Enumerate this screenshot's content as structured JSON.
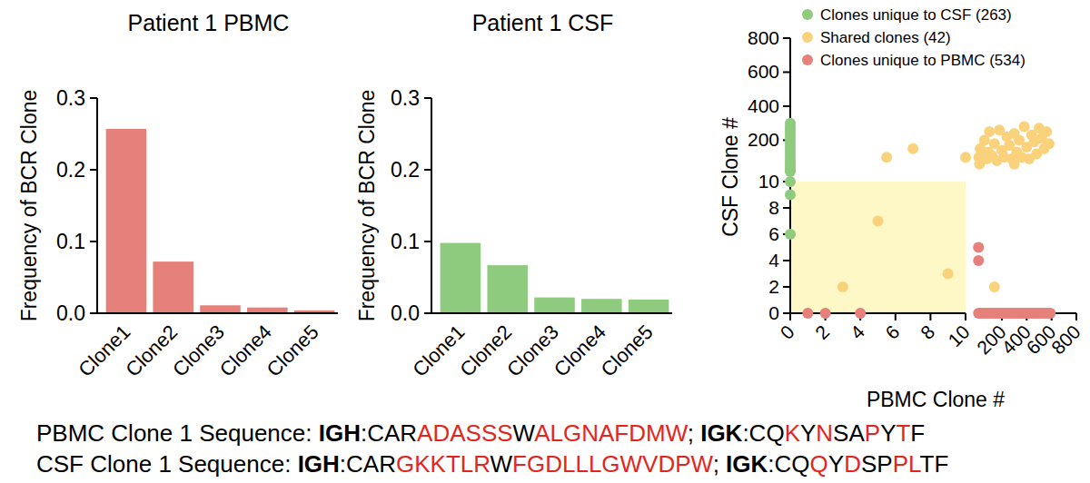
{
  "chart_data": [
    {
      "type": "bar",
      "title": "Patient 1 PBMC",
      "y_label": "Frequency of BCR Clone",
      "categories": [
        "Clone1",
        "Clone2",
        "Clone3",
        "Clone4",
        "Clone5"
      ],
      "values": [
        0.257,
        0.072,
        0.011,
        0.008,
        0.004
      ],
      "color": "#e5807a",
      "ylim": [
        0,
        0.3
      ],
      "yticks": [
        {
          "value": 0,
          "label": "0.0"
        },
        0.1,
        0.2,
        0.3
      ]
    },
    {
      "type": "bar",
      "title": "Patient 1 CSF",
      "y_label": "Frequency of BCR Clone",
      "categories": [
        "Clone1",
        "Clone2",
        "Clone3",
        "Clone4",
        "Clone5"
      ],
      "values": [
        0.098,
        0.067,
        0.022,
        0.02,
        0.019
      ],
      "color": "#8fcb7f",
      "ylim": [
        0,
        0.3
      ],
      "yticks": [
        {
          "value": 0,
          "label": "0.0"
        },
        0.1,
        0.2,
        0.3
      ]
    },
    {
      "type": "scatter",
      "x_label": "PBMC Clone #",
      "y_label": "CSF Clone #",
      "legend": "top",
      "xlim": [
        [
          0,
          10
        ],
        [
          10,
          800
        ]
      ],
      "xticks": [
        [
          0,
          2,
          4,
          6,
          8,
          10
        ],
        [
          200,
          400,
          600,
          800
        ]
      ],
      "ylim": [
        [
          0,
          10
        ],
        [
          10,
          800
        ]
      ],
      "yticks": [
        [
          0,
          2,
          4,
          6,
          8,
          10
        ],
        [
          200,
          400,
          600,
          800
        ]
      ],
      "series": [
        {
          "name": "Clones unique to CSF (263)",
          "color": "#8fcb7f",
          "x": [
            0,
            0,
            0,
            0,
            0,
            0,
            0,
            0,
            0,
            0,
            0,
            0,
            0,
            0,
            0,
            0,
            0,
            0,
            0,
            0
          ],
          "y": [
            6,
            9,
            10,
            15,
            25,
            35,
            50,
            65,
            80,
            100,
            120,
            140,
            160,
            180,
            200,
            220,
            240,
            260,
            280,
            300
          ]
        },
        {
          "name": "Shared clones (42)",
          "color": "#fbd27c",
          "x": [
            3,
            5,
            9,
            140,
            5.5,
            7,
            10,
            15,
            25,
            40,
            60,
            80,
            100,
            120,
            140,
            160,
            180,
            200,
            220,
            240,
            260,
            280,
            300,
            320,
            340,
            360,
            380,
            400,
            420,
            440,
            460,
            480,
            500,
            520,
            540,
            560,
            580,
            20,
            45,
            90,
            300
          ],
          "y": [
            2,
            7,
            3,
            2,
            100,
            150,
            100,
            100,
            150,
            120,
            200,
            90,
            250,
            110,
            180,
            80,
            260,
            140,
            100,
            220,
            170,
            90,
            240,
            130,
            200,
            100,
            280,
            160,
            90,
            230,
            190,
            120,
            270,
            210,
            150,
            250,
            180,
            60,
            90,
            130,
            60
          ]
        },
        {
          "name": "Clones unique to PBMC (534)",
          "color": "#e5807a",
          "x": [
            1,
            2,
            4,
            12,
            12,
            12,
            30,
            50,
            70,
            90,
            110,
            130,
            150,
            170,
            190,
            210,
            230,
            250,
            270,
            290,
            310,
            330,
            350,
            370,
            390,
            410,
            430,
            450,
            470,
            490,
            510,
            530,
            550,
            570,
            590
          ],
          "y": [
            0,
            0,
            0,
            5,
            4,
            0,
            0,
            0,
            0,
            0,
            0,
            0,
            0,
            0,
            0,
            0,
            0,
            0,
            0,
            0,
            0,
            0,
            0,
            0,
            0,
            0,
            0,
            0,
            0,
            0,
            0,
            0,
            0,
            0,
            0
          ]
        }
      ]
    }
  ],
  "sequences": [
    {
      "segments": [
        {
          "text": "PBMC Clone 1 Sequence: "
        },
        {
          "text": "IGH",
          "bold": true
        },
        {
          "text": ":CAR"
        },
        {
          "text": "ADASSS",
          "highlight": true
        },
        {
          "text": "W"
        },
        {
          "text": "ALGNAFDMW",
          "highlight": true
        },
        {
          "text": "; "
        },
        {
          "text": "IGK",
          "bold": true
        },
        {
          "text": ":CQ"
        },
        {
          "text": "K",
          "highlight": true
        },
        {
          "text": "Y"
        },
        {
          "text": "N",
          "highlight": true
        },
        {
          "text": "SA"
        },
        {
          "text": "P",
          "highlight": true
        },
        {
          "text": "Y"
        },
        {
          "text": "T",
          "highlight": true
        },
        {
          "text": "F"
        }
      ]
    },
    {
      "segments": [
        {
          "text": "CSF Clone 1 Sequence: "
        },
        {
          "text": "IGH",
          "bold": true
        },
        {
          "text": ":CAR"
        },
        {
          "text": "GKKTLR",
          "highlight": true
        },
        {
          "text": "W"
        },
        {
          "text": "FGDLLLGWVDPW",
          "highlight": true
        },
        {
          "text": "; "
        },
        {
          "text": "IGK",
          "bold": true
        },
        {
          "text": ":CQ"
        },
        {
          "text": "Q",
          "highlight": true
        },
        {
          "text": "Y"
        },
        {
          "text": "D",
          "highlight": true
        },
        {
          "text": "SP"
        },
        {
          "text": "PL",
          "highlight": true
        },
        {
          "text": "TF"
        }
      ]
    }
  ]
}
